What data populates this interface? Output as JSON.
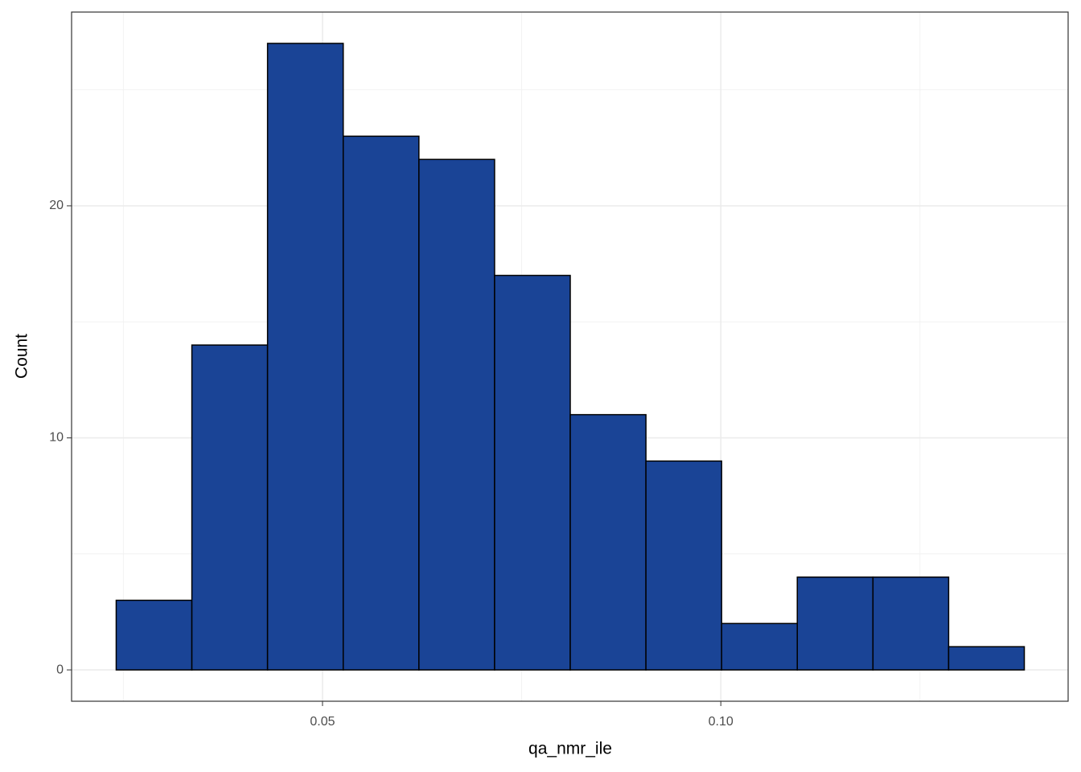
{
  "chart_data": {
    "type": "histogram",
    "x_label": "qa_nmr_ile",
    "y_label": "Count",
    "bins": [
      0.0241,
      0.0336,
      0.0431,
      0.0526,
      0.0621,
      0.0716,
      0.0811,
      0.0906,
      0.1001,
      0.1096,
      0.1191,
      0.1286,
      0.1381
    ],
    "values": [
      3,
      14,
      27,
      23,
      22,
      17,
      11,
      9,
      2,
      4,
      4,
      1
    ],
    "color": "#1a4496",
    "xlim": [
      0.0185,
      0.1436
    ],
    "ylim": [
      -1.35,
      28.35
    ],
    "xticks": [
      0.05,
      {
        "value": 0.1,
        "label": "0.10"
      }
    ],
    "yticks": [
      0,
      10,
      20
    ],
    "minor_xticks": [
      0.025,
      0.075,
      0.125
    ],
    "minor_yticks": [
      5,
      15,
      25
    ],
    "grid": true
  }
}
